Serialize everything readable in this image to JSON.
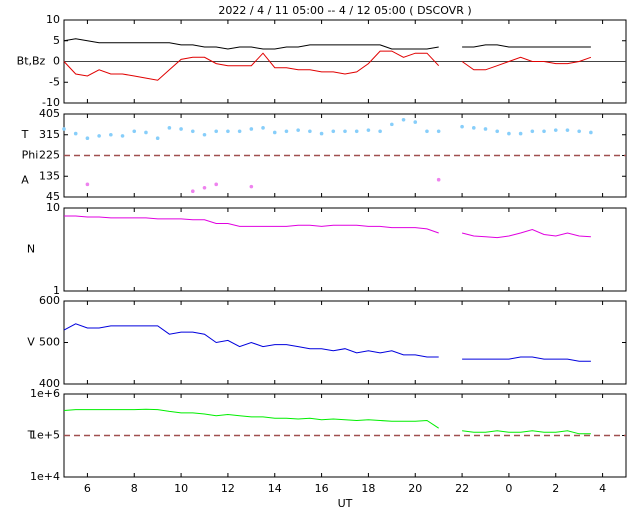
{
  "chart_data": [
    {
      "type": "line",
      "title": "2022 /  4 / 11   05:00  --  4 / 12   05:00 ( DSCOVR )",
      "ylabel": "Bt,Bz",
      "x": [
        5,
        5.5,
        6,
        6.5,
        7,
        7.5,
        8,
        8.5,
        9,
        9.5,
        10,
        10.5,
        11,
        11.5,
        12,
        12.5,
        13,
        13.5,
        14,
        14.5,
        15,
        15.5,
        16,
        16.5,
        17,
        17.5,
        18,
        18.5,
        19,
        19.5,
        20,
        20.5,
        21,
        21.5,
        22,
        22.5,
        23,
        23.5,
        24,
        24.5,
        25,
        25.5,
        26,
        26.5,
        27,
        27.5
      ],
      "xlim": [
        5,
        29
      ],
      "xticks": [
        6,
        8,
        10,
        12,
        14,
        16,
        18,
        20,
        22,
        {
          "value": 24,
          "label": "0"
        },
        {
          "value": 26,
          "label": "2"
        },
        {
          "value": 28,
          "label": "4"
        }
      ],
      "ylim": [
        -10,
        10
      ],
      "yticks": [
        10,
        5,
        0,
        -5,
        -10
      ],
      "hlines": [
        {
          "value": 0,
          "color": "#444444",
          "dashed": false
        }
      ],
      "series": [
        {
          "name": "Bt",
          "color": "#000000",
          "values": [
            5,
            5.5,
            5,
            4.5,
            4.5,
            4.5,
            4.5,
            4.5,
            4.5,
            4.5,
            4,
            4,
            3.5,
            3.5,
            3,
            3.5,
            3.5,
            3,
            3,
            3.5,
            3.5,
            4,
            4,
            4,
            4,
            4,
            4,
            4,
            3,
            3,
            3,
            3,
            3.5,
            null,
            3.5,
            3.5,
            4,
            4,
            3.5,
            3.5,
            3.5,
            3.5,
            3.5,
            3.5,
            3.5,
            3.5
          ]
        },
        {
          "name": "Bz",
          "color": "#e00000",
          "values": [
            0,
            -3,
            -3.5,
            -2,
            -3,
            -3,
            -3.5,
            -4,
            -4.5,
            -2,
            0.5,
            1,
            1,
            -0.5,
            -1,
            -1,
            -1,
            2,
            -1.5,
            -1.5,
            -2,
            -2,
            -2.5,
            -2.5,
            -3,
            -2.5,
            -0.5,
            2.5,
            2.5,
            1,
            2,
            2,
            -1,
            null,
            0,
            -2,
            -2,
            -1,
            0,
            1,
            0,
            0,
            -0.5,
            -0.5,
            0,
            1
          ]
        }
      ]
    },
    {
      "type": "scatter",
      "ylabels": [
        "T",
        "Phi",
        "A"
      ],
      "x": [
        5,
        5.5,
        6,
        6.5,
        7,
        7.5,
        8,
        8.5,
        9,
        9.5,
        10,
        10.5,
        11,
        11.5,
        12,
        12.5,
        13,
        13.5,
        14,
        14.5,
        15,
        15.5,
        16,
        16.5,
        17,
        17.5,
        18,
        18.5,
        19,
        19.5,
        20,
        20.5,
        21,
        21.5,
        22,
        22.5,
        23,
        23.5,
        24,
        24.5,
        25,
        25.5,
        26,
        26.5,
        27,
        27.5
      ],
      "xlim": [
        5,
        29
      ],
      "xticks": [
        6,
        8,
        10,
        12,
        14,
        16,
        18,
        20,
        22,
        {
          "value": 24,
          "label": "0"
        },
        {
          "value": 26,
          "label": "2"
        },
        {
          "value": 28,
          "label": "4"
        }
      ],
      "ylim": [
        45,
        405
      ],
      "yticks": [
        405,
        315,
        225,
        135,
        45
      ],
      "hlines": [
        {
          "value": 225,
          "color": "#a05050",
          "dashed": true
        }
      ],
      "series": [
        {
          "name": "T",
          "color": "#87cefa",
          "values": [
            340,
            320,
            300,
            310,
            315,
            310,
            330,
            325,
            300,
            345,
            340,
            330,
            315,
            330,
            330,
            330,
            340,
            345,
            325,
            330,
            335,
            330,
            320,
            330,
            330,
            330,
            335,
            330,
            360,
            380,
            370,
            330,
            330,
            null,
            350,
            345,
            340,
            330,
            320,
            320,
            330,
            330,
            335,
            335,
            330,
            325
          ]
        },
        {
          "name": "A",
          "color": "#ee82ee",
          "values": [
            null,
            null,
            100,
            null,
            null,
            null,
            null,
            null,
            null,
            null,
            null,
            70,
            85,
            100,
            null,
            null,
            90,
            null,
            null,
            null,
            null,
            null,
            null,
            null,
            null,
            null,
            null,
            null,
            null,
            null,
            null,
            null,
            120,
            null,
            null,
            null,
            null,
            null,
            null,
            null,
            null,
            null,
            null,
            null,
            null,
            null
          ]
        }
      ]
    },
    {
      "type": "line",
      "ylabel": "N",
      "log": true,
      "x": [
        5,
        5.5,
        6,
        6.5,
        7,
        7.5,
        8,
        8.5,
        9,
        9.5,
        10,
        10.5,
        11,
        11.5,
        12,
        12.5,
        13,
        13.5,
        14,
        14.5,
        15,
        15.5,
        16,
        16.5,
        17,
        17.5,
        18,
        18.5,
        19,
        19.5,
        20,
        20.5,
        21,
        21.5,
        22,
        22.5,
        23,
        23.5,
        24,
        24.5,
        25,
        25.5,
        26,
        26.5,
        27,
        27.5
      ],
      "xlim": [
        5,
        29
      ],
      "xticks": [
        6,
        8,
        10,
        12,
        14,
        16,
        18,
        20,
        22,
        {
          "value": 24,
          "label": "0"
        },
        {
          "value": 26,
          "label": "2"
        },
        {
          "value": 28,
          "label": "4"
        }
      ],
      "ylim": [
        1,
        10
      ],
      "yticks": [
        10,
        1
      ],
      "series": [
        {
          "name": "N",
          "color": "#e000e0",
          "values": [
            8,
            8,
            7.8,
            7.8,
            7.6,
            7.6,
            7.6,
            7.6,
            7.4,
            7.4,
            7.4,
            7.2,
            7.2,
            6.5,
            6.5,
            6,
            6,
            6,
            6,
            6,
            6.2,
            6.2,
            6,
            6.2,
            6.2,
            6.2,
            6,
            6,
            5.8,
            5.8,
            5.8,
            5.6,
            5,
            null,
            5,
            4.6,
            4.5,
            4.4,
            4.6,
            5,
            5.5,
            4.8,
            4.6,
            5,
            4.6,
            4.5
          ]
        }
      ]
    },
    {
      "type": "line",
      "ylabel": "V",
      "x": [
        5,
        5.5,
        6,
        6.5,
        7,
        7.5,
        8,
        8.5,
        9,
        9.5,
        10,
        10.5,
        11,
        11.5,
        12,
        12.5,
        13,
        13.5,
        14,
        14.5,
        15,
        15.5,
        16,
        16.5,
        17,
        17.5,
        18,
        18.5,
        19,
        19.5,
        20,
        20.5,
        21,
        21.5,
        22,
        22.5,
        23,
        23.5,
        24,
        24.5,
        25,
        25.5,
        26,
        26.5,
        27,
        27.5
      ],
      "xlim": [
        5,
        29
      ],
      "xticks": [
        6,
        8,
        10,
        12,
        14,
        16,
        18,
        20,
        22,
        {
          "value": 24,
          "label": "0"
        },
        {
          "value": 26,
          "label": "2"
        },
        {
          "value": 28,
          "label": "4"
        }
      ],
      "ylim": [
        400,
        600
      ],
      "yticks": [
        600,
        500,
        400
      ],
      "series": [
        {
          "name": "V",
          "color": "#0000dd",
          "values": [
            530,
            545,
            535,
            535,
            540,
            540,
            540,
            540,
            540,
            520,
            525,
            525,
            520,
            500,
            505,
            490,
            500,
            490,
            495,
            495,
            490,
            485,
            485,
            480,
            485,
            475,
            480,
            475,
            480,
            470,
            470,
            465,
            465,
            null,
            460,
            460,
            460,
            460,
            460,
            465,
            465,
            460,
            460,
            460,
            455,
            455
          ]
        }
      ]
    },
    {
      "type": "line",
      "ylabel": "T",
      "log": true,
      "xlabel": "UT",
      "x": [
        5,
        5.5,
        6,
        6.5,
        7,
        7.5,
        8,
        8.5,
        9,
        9.5,
        10,
        10.5,
        11,
        11.5,
        12,
        12.5,
        13,
        13.5,
        14,
        14.5,
        15,
        15.5,
        16,
        16.5,
        17,
        17.5,
        18,
        18.5,
        19,
        19.5,
        20,
        20.5,
        21,
        21.5,
        22,
        22.5,
        23,
        23.5,
        24,
        24.5,
        25,
        25.5,
        26,
        26.5,
        27,
        27.5
      ],
      "xlim": [
        5,
        29
      ],
      "xticks": [
        6,
        8,
        10,
        12,
        14,
        16,
        18,
        20,
        22,
        {
          "value": 24,
          "label": "0"
        },
        {
          "value": 26,
          "label": "2"
        },
        {
          "value": 28,
          "label": "4"
        }
      ],
      "ylim": [
        10000,
        1000000
      ],
      "yticks": [
        {
          "value": 1000000,
          "label": "1e+6"
        },
        {
          "value": 100000,
          "label": "1e+5"
        },
        {
          "value": 10000,
          "label": "1e+4"
        }
      ],
      "hlines": [
        {
          "value": 100000,
          "color": "#a05050",
          "dashed": true
        }
      ],
      "series": [
        {
          "name": "T",
          "color": "#00ee00",
          "values": [
            400000,
            420000,
            420000,
            420000,
            420000,
            420000,
            420000,
            430000,
            420000,
            380000,
            350000,
            350000,
            330000,
            300000,
            320000,
            300000,
            280000,
            280000,
            260000,
            260000,
            250000,
            260000,
            240000,
            250000,
            240000,
            230000,
            240000,
            230000,
            220000,
            220000,
            220000,
            230000,
            150000,
            null,
            130000,
            120000,
            120000,
            130000,
            120000,
            120000,
            130000,
            120000,
            120000,
            130000,
            110000,
            110000
          ]
        }
      ]
    }
  ]
}
